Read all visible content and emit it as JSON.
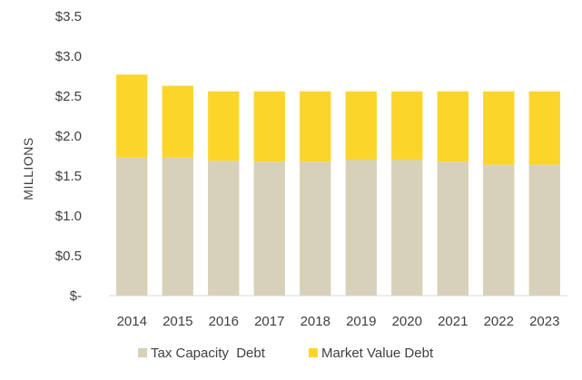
{
  "chart_data": {
    "type": "bar",
    "stacked": true,
    "categories": [
      "2014",
      "2015",
      "2016",
      "2017",
      "2018",
      "2019",
      "2020",
      "2021",
      "2022",
      "2023"
    ],
    "series": [
      {
        "name": "Tax Capacity  Debt",
        "color": "#d6d1b8",
        "values": [
          1.73,
          1.73,
          1.69,
          1.68,
          1.68,
          1.7,
          1.7,
          1.68,
          1.64,
          1.64
        ]
      },
      {
        "name": "Market Value Debt",
        "color": "#fcd52b",
        "values": [
          1.04,
          0.9,
          0.87,
          0.88,
          0.88,
          0.86,
          0.86,
          0.88,
          0.92,
          0.92
        ]
      }
    ],
    "ylabel": "MILLIONS",
    "ylim": [
      0,
      3.5
    ],
    "yticks": [
      0,
      0.5,
      1.0,
      1.5,
      2.0,
      2.5,
      3.0,
      3.5
    ],
    "ytick_labels": [
      "$-",
      "$0.5",
      "$1.0",
      "$1.5",
      "$2.0",
      "$2.5",
      "$3.0",
      "$3.5"
    ],
    "legend_position": "bottom",
    "grid": false
  }
}
